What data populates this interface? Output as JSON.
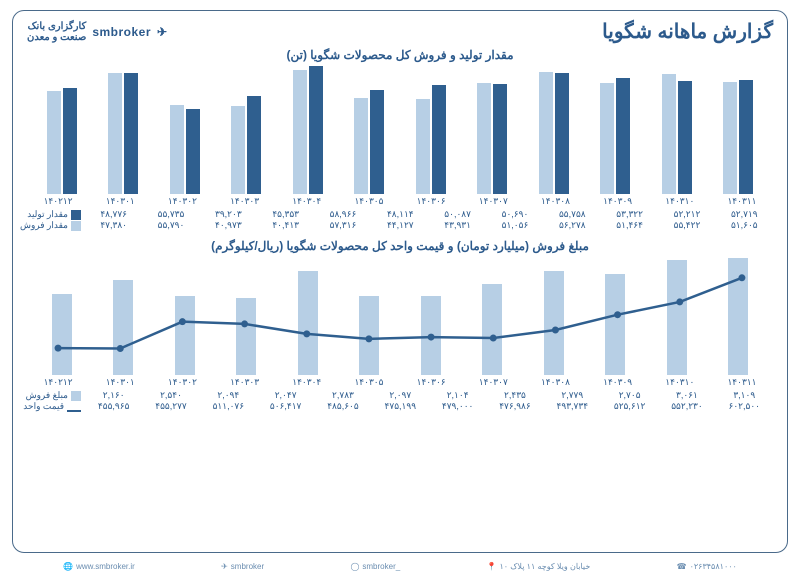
{
  "header": {
    "title": "گزارش ماهانه شگویا",
    "broker": "smbroker",
    "bank": "کارگزاری بانک\nصنعت و معدن"
  },
  "chart1": {
    "title": "مقدار تولید و فروش کل محصولات شگویا (تن)",
    "categories": [
      "۱۴۰۲۱۲",
      "۱۴۰۳۰۱",
      "۱۴۰۳۰۲",
      "۱۴۰۳۰۳",
      "۱۴۰۳۰۴",
      "۱۴۰۳۰۵",
      "۱۴۰۳۰۶",
      "۱۴۰۳۰۷",
      "۱۴۰۳۰۸",
      "۱۴۰۳۰۹",
      "۱۴۰۳۱۰",
      "۱۴۰۳۱۱"
    ],
    "series": [
      {
        "name": "مقدار تولید",
        "color": "#2f5f8f",
        "values": [
          48776,
          55735,
          39203,
          45353,
          58966,
          48114,
          50087,
          50690,
          55758,
          53322,
          52212,
          52719
        ]
      },
      {
        "name": "مقدار فروش",
        "color": "#b7cfe5",
        "values": [
          47380,
          55790,
          40973,
          40413,
          57316,
          44127,
          43931,
          51056,
          56278,
          51464,
          55422,
          51605
        ]
      }
    ],
    "ylim": [
      0,
      60000
    ]
  },
  "chart2": {
    "title": "مبلغ فروش (میلیارد تومان) و قیمت واحد کل محصولات شگویا (ریال/کیلوگرم)",
    "categories": [
      "۱۴۰۲۱۲",
      "۱۴۰۳۰۱",
      "۱۴۰۳۰۲",
      "۱۴۰۳۰۳",
      "۱۴۰۳۰۴",
      "۱۴۰۳۰۵",
      "۱۴۰۳۰۶",
      "۱۴۰۳۰۷",
      "۱۴۰۳۰۸",
      "۱۴۰۳۰۹",
      "۱۴۰۳۱۰",
      "۱۴۰۳۱۱"
    ],
    "bars": {
      "name": "مبلغ فروش",
      "color": "#b7cfe5",
      "values": [
        2160,
        2540,
        2094,
        2047,
        2783,
        2097,
        2104,
        2435,
        2779,
        2705,
        3061,
        3109
      ]
    },
    "line": {
      "name": "قیمت واحد",
      "color": "#2f5f8f",
      "values": [
        455965,
        455277,
        511076,
        506417,
        485605,
        475199,
        479000,
        476986,
        493734,
        525612,
        552230,
        602500
      ]
    },
    "bars_ylim": [
      0,
      3200
    ],
    "line_ylim": [
      400000,
      650000
    ]
  },
  "footer": {
    "phone": "۰۲۶۳۴۵۸۱۰۰۰",
    "address": "خیابان ویلا کوچه ۱۱ پلاک ۱۰",
    "instagram_handle": "smbroker_",
    "telegram_handle": "smbroker",
    "website": "www.smbroker.ir"
  }
}
